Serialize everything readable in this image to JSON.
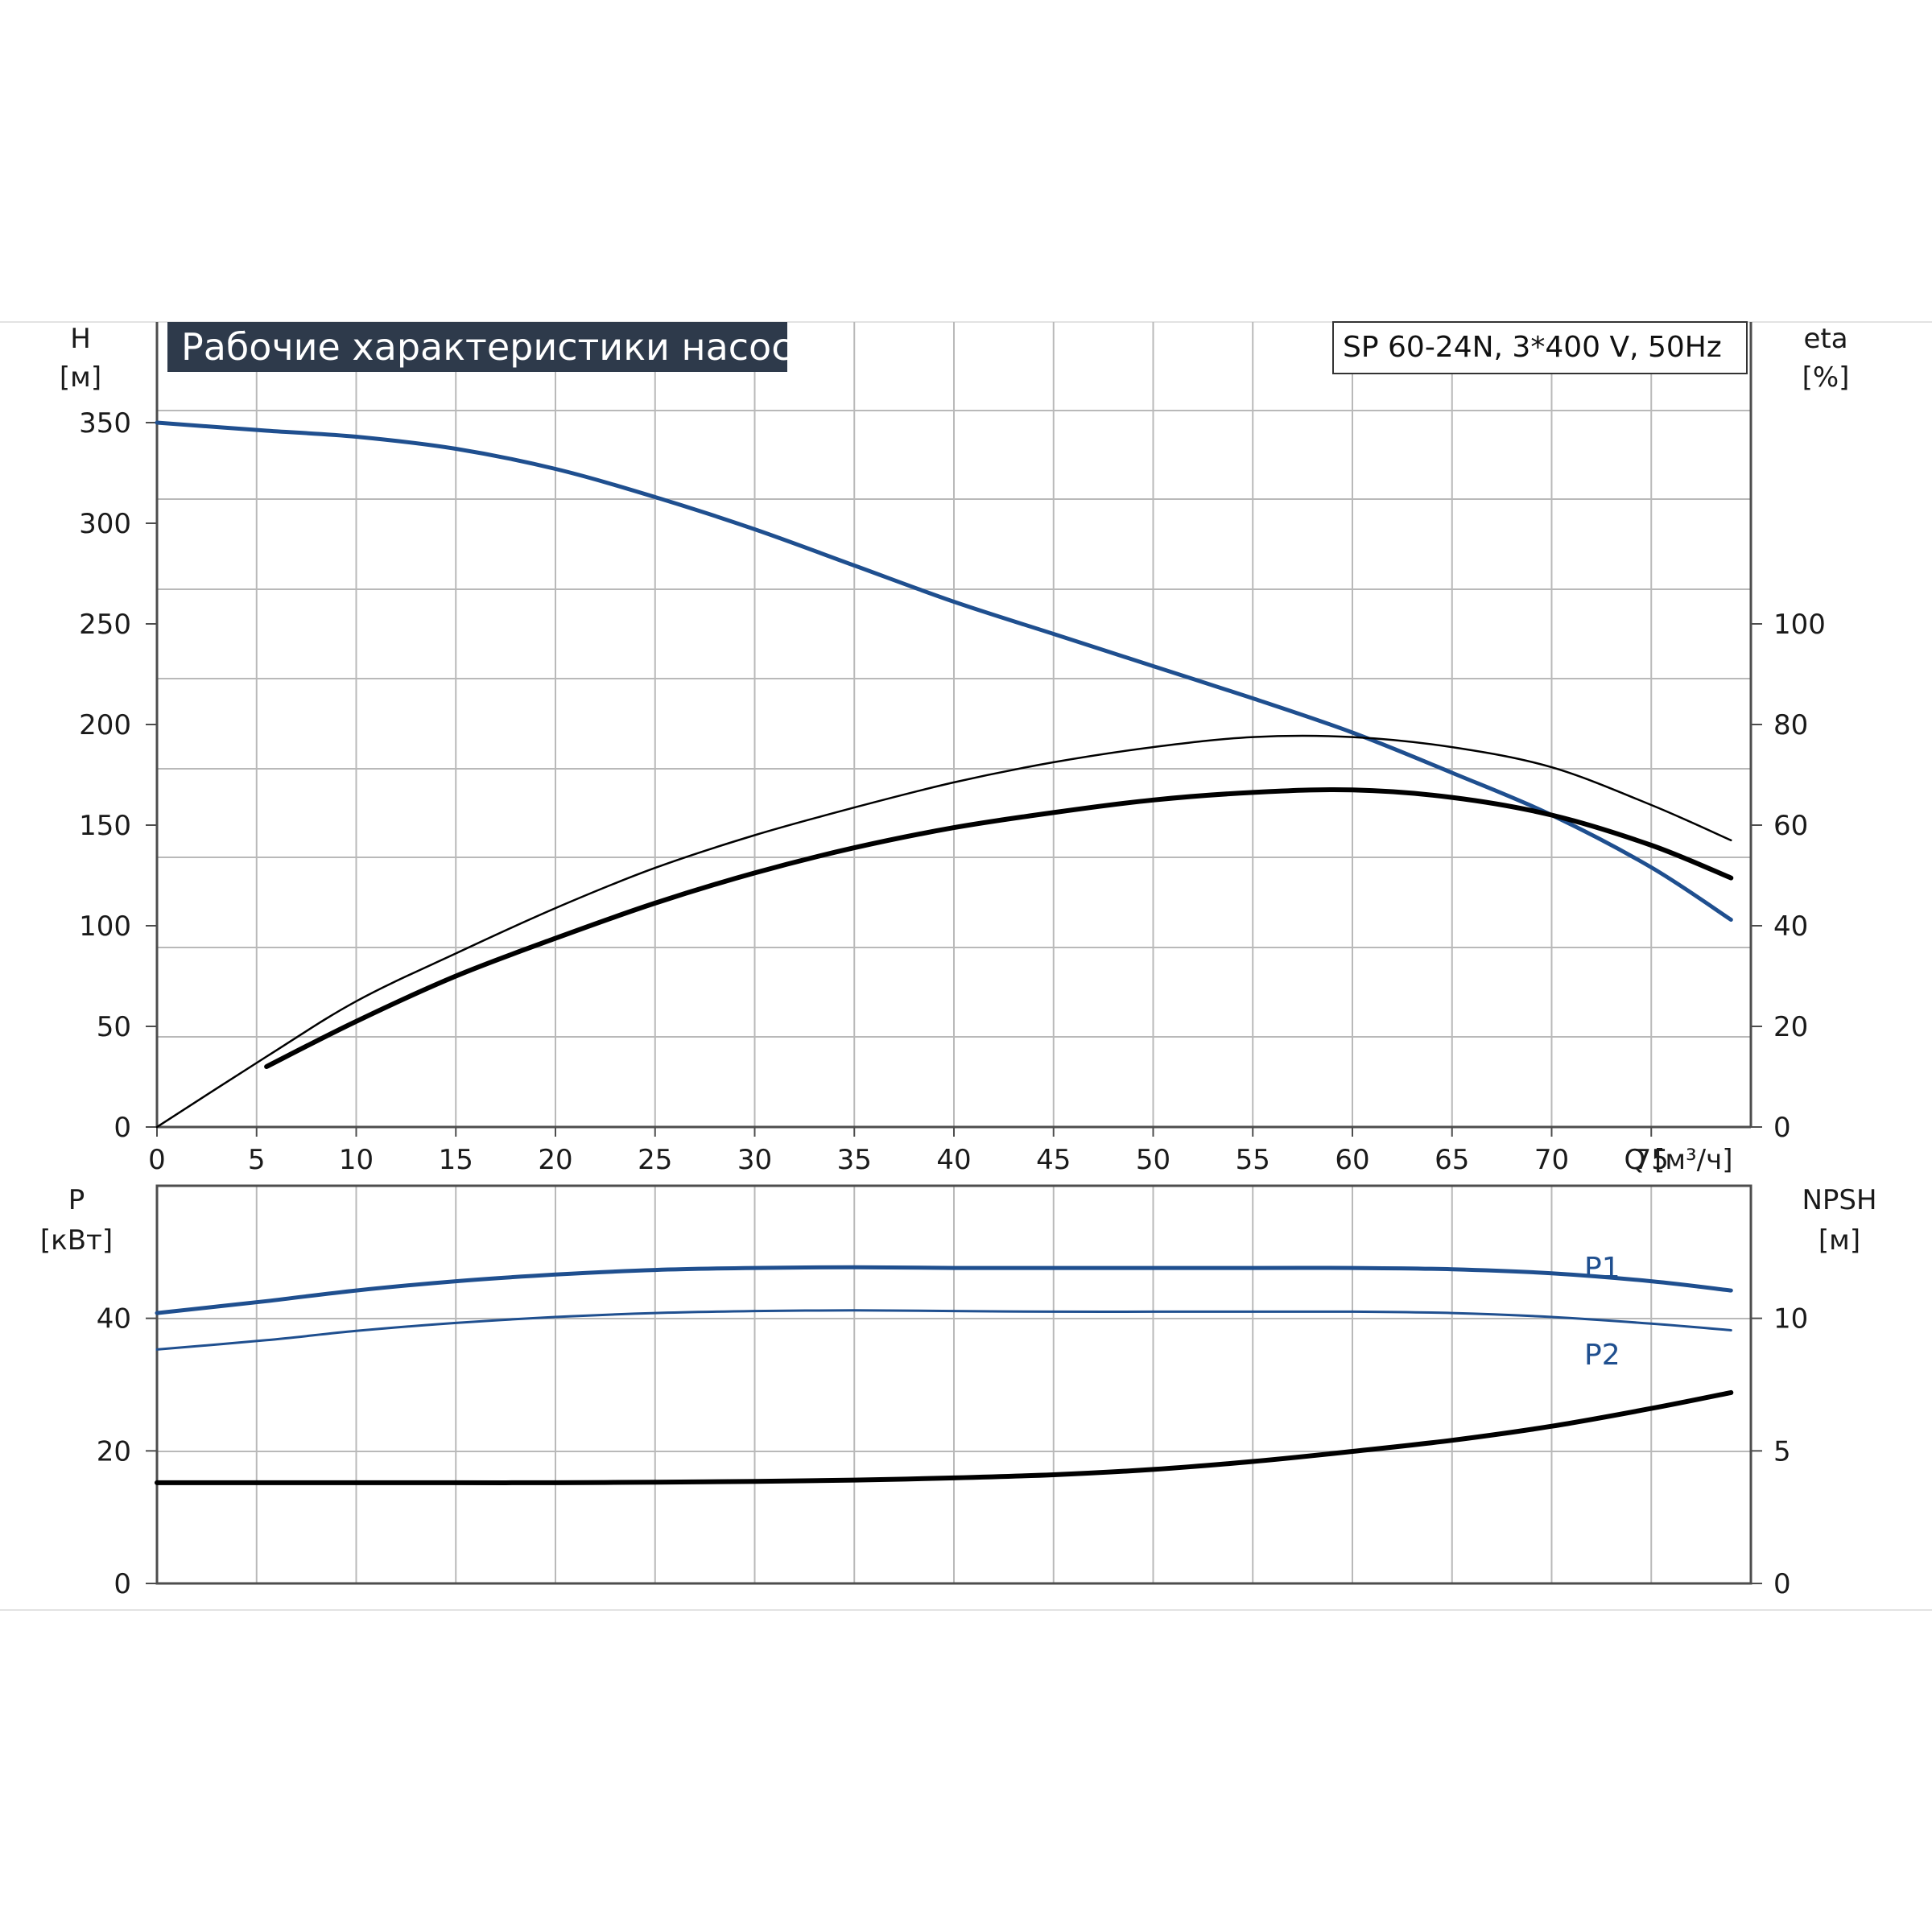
{
  "title": "Рабочие характеристики насоса",
  "model": "SP 60-24N, 3*400 V, 50Hz",
  "colors": {
    "blue": "#1f4f8f",
    "black": "#000000",
    "title_bg": "#2e3a4b"
  },
  "chart_data": [
    {
      "type": "line",
      "panel": "top",
      "x_label": "Q [м³/ч]",
      "x_ticks": [
        0,
        5,
        10,
        15,
        20,
        25,
        30,
        35,
        40,
        45,
        50,
        55,
        60,
        65,
        70,
        75
      ],
      "xlim": [
        0,
        80
      ],
      "y_left": {
        "label_line1": "H",
        "label_line2": "[м]",
        "ticks": [
          0,
          50,
          100,
          150,
          200,
          250,
          300,
          350
        ],
        "ylim": [
          0,
          400
        ]
      },
      "y_right": {
        "label_line1": "eta",
        "label_line2": "[%]",
        "ticks": [
          0,
          20,
          40,
          60,
          80,
          100
        ],
        "ylim": [
          0,
          160
        ]
      },
      "grid": true,
      "series": [
        {
          "axis": "left",
          "color": "#1f4f8f",
          "width": 5,
          "x": [
            0,
            5.5,
            10,
            15,
            20,
            25,
            30,
            35,
            40,
            45,
            50,
            55,
            60,
            65,
            70,
            75,
            79
          ],
          "y": [
            350,
            346,
            343,
            337,
            327,
            313,
            297,
            279,
            261,
            245,
            229,
            213,
            196,
            176,
            155,
            129,
            103
          ]
        },
        {
          "axis": "right",
          "color": "#000000",
          "width": 2.5,
          "x": [
            0,
            5.5,
            10,
            15,
            20,
            25,
            30,
            35,
            40,
            45,
            50,
            55,
            60,
            65,
            70,
            75,
            79
          ],
          "y": [
            0,
            14,
            25,
            34.5,
            43.5,
            51.5,
            58,
            63.5,
            68.5,
            72.5,
            75.5,
            77.5,
            77.5,
            75.5,
            71.5,
            64,
            57
          ]
        },
        {
          "axis": "right",
          "color": "#000000",
          "width": 6,
          "x": [
            5.5,
            10,
            15,
            20,
            25,
            30,
            35,
            40,
            45,
            50,
            55,
            60,
            65,
            70,
            75,
            79
          ],
          "y": [
            12,
            21,
            30,
            37.5,
            44.5,
            50.5,
            55.5,
            59.5,
            62.5,
            65,
            66.5,
            67,
            65.5,
            62,
            56,
            49.5
          ]
        }
      ]
    },
    {
      "type": "line",
      "panel": "bottom",
      "xlim": [
        0,
        80
      ],
      "y_left": {
        "label_line1": "P",
        "label_line2": "[кВт]",
        "ticks": [
          0,
          20,
          40
        ],
        "ylim": [
          0,
          60
        ]
      },
      "y_right": {
        "label_line1": "NPSH",
        "label_line2": "[м]",
        "ticks": [
          0,
          5,
          10
        ],
        "ylim": [
          0,
          15
        ]
      },
      "grid": true,
      "series": [
        {
          "name": "P1",
          "axis": "left",
          "color": "#1f4f8f",
          "width": 5,
          "x": [
            0,
            5.5,
            10,
            15,
            20,
            25,
            30,
            35,
            40,
            45,
            50,
            55,
            60,
            65,
            70,
            75,
            79
          ],
          "y": [
            40.8,
            42.6,
            44.2,
            45.6,
            46.6,
            47.3,
            47.6,
            47.7,
            47.6,
            47.6,
            47.6,
            47.6,
            47.6,
            47.4,
            46.8,
            45.6,
            44.2
          ]
        },
        {
          "name": "P2",
          "axis": "left",
          "color": "#1f4f8f",
          "width": 3,
          "x": [
            0,
            5.5,
            10,
            15,
            20,
            25,
            30,
            35,
            40,
            45,
            50,
            55,
            60,
            65,
            70,
            75,
            79
          ],
          "y": [
            35.3,
            36.7,
            38.1,
            39.3,
            40.2,
            40.8,
            41.1,
            41.2,
            41.1,
            41.0,
            41.0,
            41.0,
            41.0,
            40.8,
            40.2,
            39.2,
            38.2
          ]
        },
        {
          "axis": "right",
          "color": "#000000",
          "width": 6,
          "x": [
            0,
            5.5,
            10,
            15,
            20,
            25,
            30,
            35,
            40,
            45,
            50,
            55,
            60,
            65,
            70,
            75,
            79
          ],
          "y": [
            3.8,
            3.8,
            3.8,
            3.8,
            3.8,
            3.82,
            3.85,
            3.9,
            3.98,
            4.1,
            4.3,
            4.6,
            4.98,
            5.4,
            5.93,
            6.6,
            7.2
          ]
        }
      ]
    }
  ]
}
